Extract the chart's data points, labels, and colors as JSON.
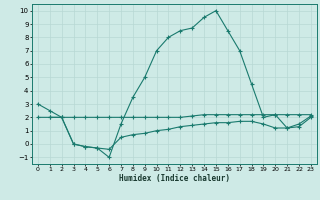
{
  "xlabel": "Humidex (Indice chaleur)",
  "ylabel": "",
  "bg_color": "#ceeae6",
  "grid_color": "#b8d8d4",
  "line_color": "#1a7a6e",
  "xlim": [
    -0.5,
    23.5
  ],
  "ylim": [
    -1.5,
    10.5
  ],
  "xticks": [
    0,
    1,
    2,
    3,
    4,
    5,
    6,
    7,
    8,
    9,
    10,
    11,
    12,
    13,
    14,
    15,
    16,
    17,
    18,
    19,
    20,
    21,
    22,
    23
  ],
  "yticks": [
    -1,
    0,
    1,
    2,
    3,
    4,
    5,
    6,
    7,
    8,
    9,
    10
  ],
  "series": [
    {
      "x": [
        0,
        1,
        2,
        3,
        4,
        5,
        6,
        7,
        8,
        9,
        10,
        11,
        12,
        13,
        14,
        15,
        16,
        17,
        18,
        19,
        20,
        21,
        22,
        23
      ],
      "y": [
        3,
        2.5,
        2,
        0,
        -0.2,
        -0.3,
        -1,
        1.5,
        3.5,
        5,
        7,
        8,
        8.5,
        8.7,
        9.5,
        10,
        8.5,
        7,
        4.5,
        2,
        2.2,
        1.2,
        1.3,
        2
      ]
    },
    {
      "x": [
        0,
        1,
        2,
        3,
        4,
        5,
        6,
        7,
        8,
        9,
        10,
        11,
        12,
        13,
        14,
        15,
        16,
        17,
        18,
        19,
        20,
        21,
        22,
        23
      ],
      "y": [
        2,
        2,
        2,
        2,
        2,
        2,
        2,
        2,
        2,
        2,
        2,
        2,
        2,
        2.1,
        2.2,
        2.2,
        2.2,
        2.2,
        2.2,
        2.2,
        2.2,
        2.2,
        2.2,
        2.2
      ]
    },
    {
      "x": [
        1,
        2,
        3,
        4,
        5,
        6,
        7,
        8,
        9,
        10,
        11,
        12,
        13,
        14,
        15,
        16,
        17,
        18,
        19,
        20,
        21,
        22,
        23
      ],
      "y": [
        2,
        2,
        0,
        -0.2,
        -0.3,
        -0.4,
        0.5,
        0.7,
        0.8,
        1.0,
        1.1,
        1.3,
        1.4,
        1.5,
        1.6,
        1.6,
        1.7,
        1.7,
        1.5,
        1.2,
        1.2,
        1.5,
        2.1
      ]
    }
  ]
}
